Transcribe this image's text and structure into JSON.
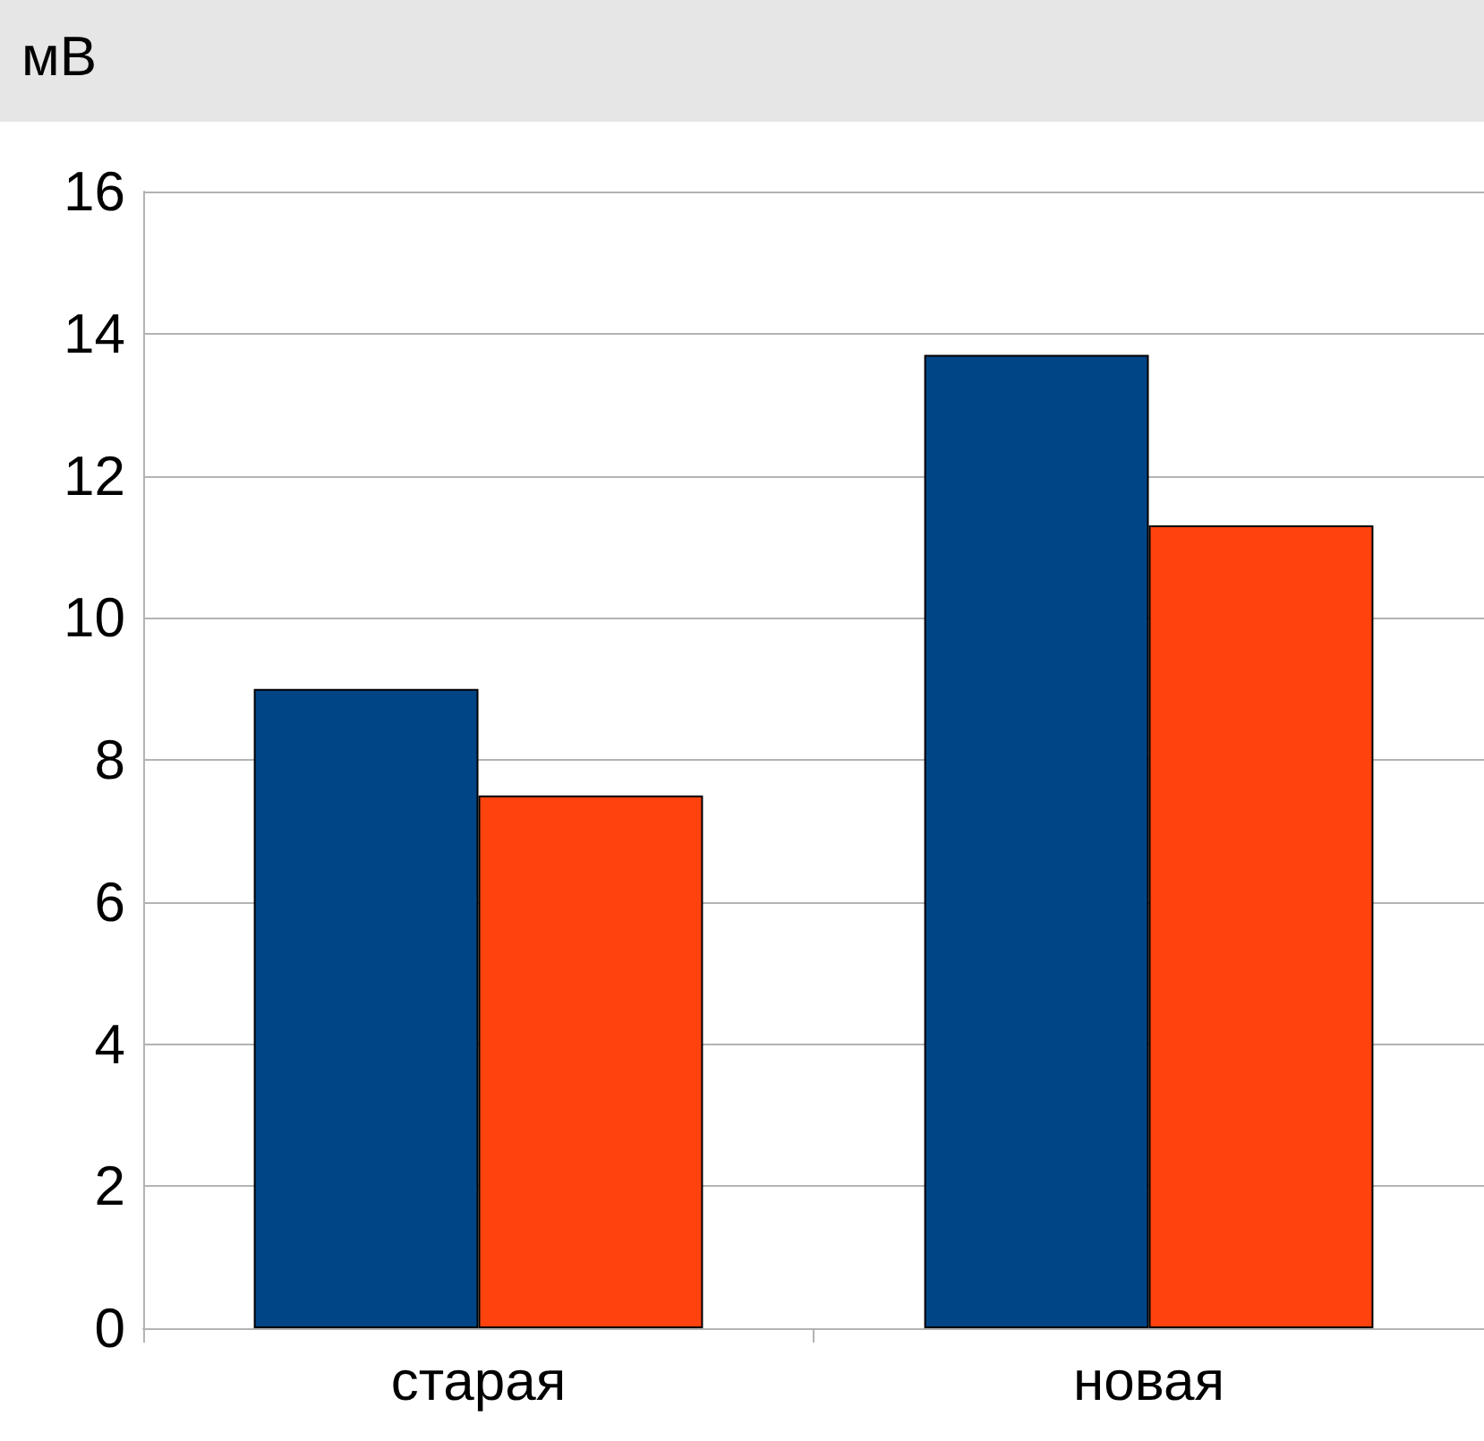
{
  "chart_data": {
    "type": "bar",
    "ylabel": "мВ",
    "categories": [
      "старая",
      "новая"
    ],
    "series": [
      {
        "color": "#004586",
        "values": [
          9,
          13.7
        ]
      },
      {
        "color": "#ff420e",
        "values": [
          7.5,
          11.3
        ]
      }
    ],
    "ylim": [
      0,
      16
    ],
    "yticks": [
      0,
      2,
      4,
      6,
      8,
      10,
      12,
      14,
      16
    ],
    "grid": "y"
  }
}
